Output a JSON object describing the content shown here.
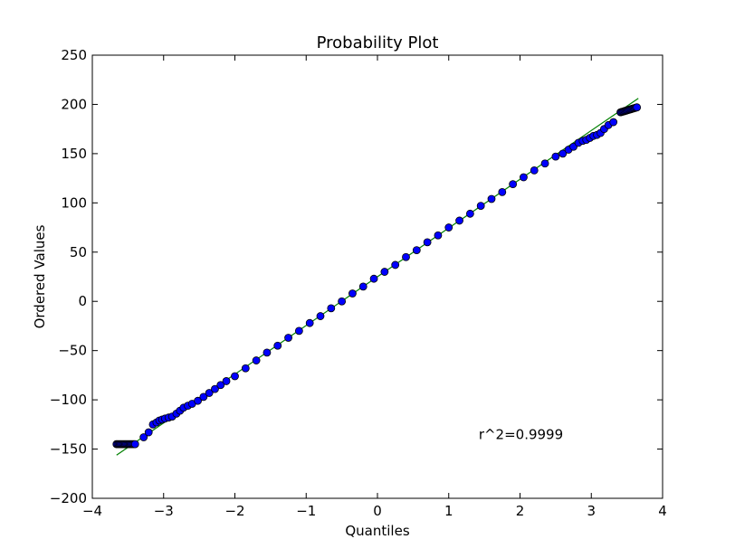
{
  "chart_data": {
    "type": "scatter",
    "title": "Probability Plot",
    "xlabel": "Quantiles",
    "ylabel": "Ordered Values",
    "xlim": [
      -4,
      4
    ],
    "ylim": [
      -200,
      250
    ],
    "xticks": [
      -4,
      -3,
      -2,
      -1,
      0,
      1,
      2,
      3,
      4
    ],
    "yticks": [
      -200,
      -150,
      -100,
      -50,
      0,
      50,
      100,
      150,
      200,
      250
    ],
    "xtick_labels": [
      "−4",
      "−3",
      "−2",
      "−1",
      "0",
      "1",
      "2",
      "3",
      "4"
    ],
    "ytick_labels": [
      "−200",
      "−150",
      "−100",
      "−50",
      "0",
      "50",
      "100",
      "150",
      "200",
      "250"
    ],
    "grid": false,
    "annotation": {
      "text": "r^2=0.9999",
      "x": 1.42,
      "y": -140
    },
    "fit_line": {
      "slope": 49.5,
      "intercept": 25,
      "x_range": [
        -3.66,
        3.66
      ],
      "color": "#008000"
    },
    "points_color": "#0000ff",
    "points": [
      [
        -3.66,
        -145
      ],
      [
        -3.4,
        -145
      ],
      [
        -3.28,
        -138
      ],
      [
        -3.21,
        -133
      ],
      [
        -3.15,
        -125
      ],
      [
        -3.1,
        -123
      ],
      [
        -3.06,
        -121
      ],
      [
        -3.02,
        -120
      ],
      [
        -2.98,
        -119
      ],
      [
        -2.93,
        -118
      ],
      [
        -2.88,
        -117
      ],
      [
        -2.82,
        -114
      ],
      [
        -2.77,
        -111
      ],
      [
        -2.72,
        -108
      ],
      [
        -2.66,
        -106
      ],
      [
        -2.6,
        -104
      ],
      [
        -2.52,
        -101
      ],
      [
        -2.44,
        -97
      ],
      [
        -2.36,
        -93
      ],
      [
        -2.28,
        -89
      ],
      [
        -2.2,
        -85
      ],
      [
        -2.12,
        -81
      ],
      [
        -2.0,
        -76
      ],
      [
        -1.85,
        -68
      ],
      [
        -1.7,
        -60
      ],
      [
        -1.55,
        -52
      ],
      [
        -1.4,
        -45
      ],
      [
        -1.25,
        -37
      ],
      [
        -1.1,
        -30
      ],
      [
        -0.95,
        -22
      ],
      [
        -0.8,
        -15
      ],
      [
        -0.65,
        -7
      ],
      [
        -0.5,
        0
      ],
      [
        -0.35,
        8
      ],
      [
        -0.2,
        15
      ],
      [
        -0.05,
        23
      ],
      [
        0.1,
        30
      ],
      [
        0.25,
        37
      ],
      [
        0.4,
        45
      ],
      [
        0.55,
        52
      ],
      [
        0.7,
        60
      ],
      [
        0.85,
        67
      ],
      [
        1.0,
        75
      ],
      [
        1.15,
        82
      ],
      [
        1.3,
        89
      ],
      [
        1.45,
        97
      ],
      [
        1.6,
        104
      ],
      [
        1.75,
        111
      ],
      [
        1.9,
        119
      ],
      [
        2.05,
        126
      ],
      [
        2.2,
        133
      ],
      [
        2.35,
        140
      ],
      [
        2.5,
        147
      ],
      [
        2.6,
        150
      ],
      [
        2.68,
        154
      ],
      [
        2.75,
        157
      ],
      [
        2.82,
        161
      ],
      [
        2.88,
        163
      ],
      [
        2.93,
        164
      ],
      [
        2.98,
        166
      ],
      [
        3.03,
        168
      ],
      [
        3.08,
        169
      ],
      [
        3.13,
        171
      ],
      [
        3.18,
        175
      ],
      [
        3.24,
        179
      ],
      [
        3.31,
        182
      ],
      [
        3.41,
        192
      ],
      [
        3.64,
        197
      ]
    ]
  }
}
